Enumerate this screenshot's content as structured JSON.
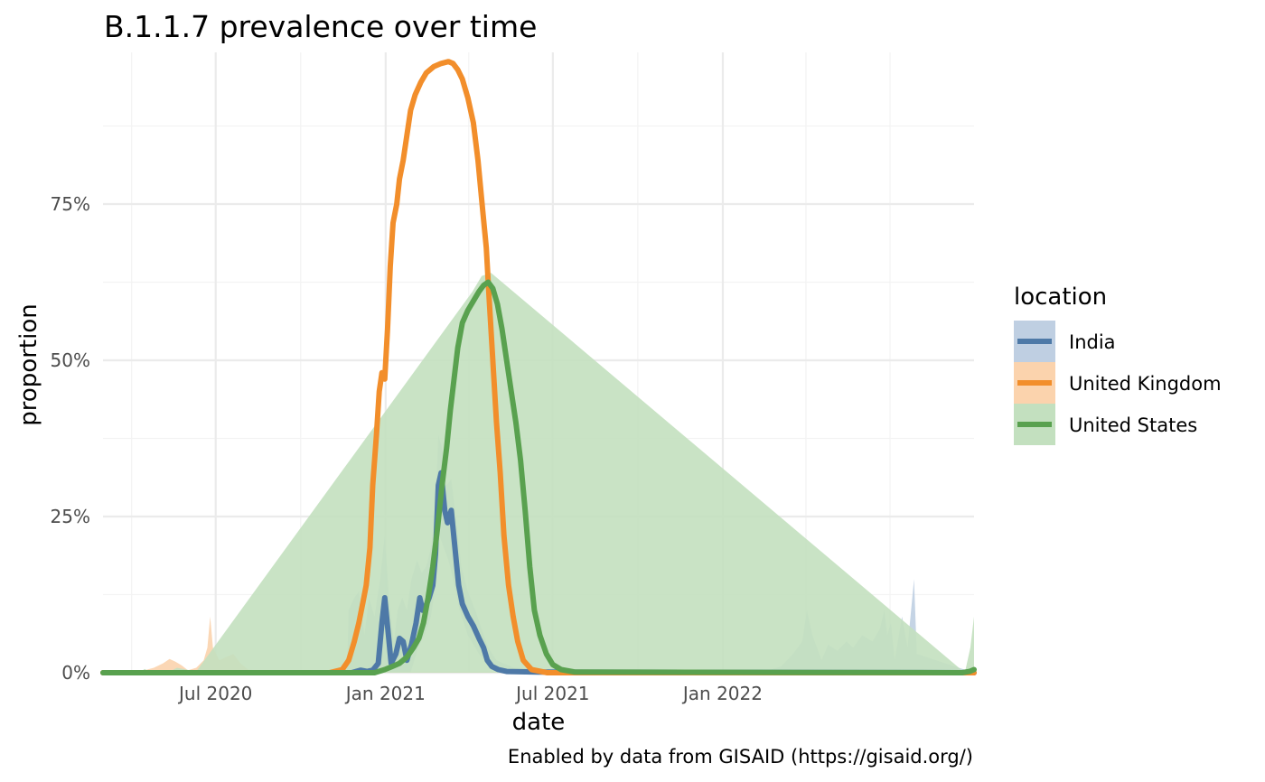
{
  "chart_data": {
    "type": "line",
    "title": "B.1.1.7 prevalence over time",
    "xlabel": "date",
    "ylabel": "proportion",
    "caption": "Enabled by data from GISAID (https://gisaid.org/)",
    "xlim": [
      "2020-03-01",
      "2022-09-30"
    ],
    "ylim": [
      0,
      1
    ],
    "x_ticks": [
      {
        "date": "2020-07-01",
        "label": "Jul 2020"
      },
      {
        "date": "2021-01-01",
        "label": "Jan 2021"
      },
      {
        "date": "2021-07-01",
        "label": "Jul 2021"
      },
      {
        "date": "2022-01-01",
        "label": "Jan 2022"
      }
    ],
    "x_minor_ticks": [
      "2020-04-01",
      "2020-10-01",
      "2021-04-01",
      "2021-10-01",
      "2022-04-01",
      "2022-07-01"
    ],
    "y_ticks": [
      {
        "value": 0,
        "label": "0%"
      },
      {
        "value": 0.25,
        "label": "25%"
      },
      {
        "value": 0.5,
        "label": "50%"
      },
      {
        "value": 0.75,
        "label": "75%"
      }
    ],
    "y_minor_ticks": [
      0.125,
      0.375,
      0.625,
      0.875
    ],
    "grid": true,
    "legend": {
      "title": "location",
      "position": "right"
    },
    "series": [
      {
        "name": "India",
        "color": "#4e79a7",
        "fill_color": "#bfcfe2",
        "line": [
          [
            "2020-03-01",
            0
          ],
          [
            "2020-11-25",
            0
          ],
          [
            "2020-12-05",
            0.004
          ],
          [
            "2020-12-12",
            0.002
          ],
          [
            "2020-12-18",
            0.004
          ],
          [
            "2020-12-24",
            0.015
          ],
          [
            "2020-12-28",
            0.08
          ],
          [
            "2020-12-31",
            0.12
          ],
          [
            "2021-01-04",
            0.06
          ],
          [
            "2021-01-07",
            0.015
          ],
          [
            "2021-01-12",
            0.03
          ],
          [
            "2021-01-16",
            0.055
          ],
          [
            "2021-01-20",
            0.05
          ],
          [
            "2021-01-24",
            0.02
          ],
          [
            "2021-01-29",
            0.045
          ],
          [
            "2021-02-03",
            0.08
          ],
          [
            "2021-02-07",
            0.12
          ],
          [
            "2021-02-10",
            0.1
          ],
          [
            "2021-02-13",
            0.105
          ],
          [
            "2021-02-17",
            0.12
          ],
          [
            "2021-02-21",
            0.14
          ],
          [
            "2021-02-24",
            0.19
          ],
          [
            "2021-02-27",
            0.3
          ],
          [
            "2021-03-02",
            0.32
          ],
          [
            "2021-03-06",
            0.26
          ],
          [
            "2021-03-09",
            0.24
          ],
          [
            "2021-03-13",
            0.26
          ],
          [
            "2021-03-17",
            0.2
          ],
          [
            "2021-03-21",
            0.14
          ],
          [
            "2021-03-25",
            0.11
          ],
          [
            "2021-03-31",
            0.09
          ],
          [
            "2021-04-06",
            0.075
          ],
          [
            "2021-04-12",
            0.055
          ],
          [
            "2021-04-17",
            0.04
          ],
          [
            "2021-04-21",
            0.02
          ],
          [
            "2021-04-26",
            0.01
          ],
          [
            "2021-05-03",
            0.005
          ],
          [
            "2021-05-12",
            0.002
          ],
          [
            "2021-06-15",
            0.001
          ],
          [
            "2022-09-30",
            0.0
          ]
        ],
        "band_upper": [
          [
            "2020-03-01",
            0
          ],
          [
            "2020-11-20",
            0
          ],
          [
            "2020-11-22",
            0.1
          ],
          [
            "2020-11-28",
            0.12
          ],
          [
            "2020-12-03",
            0.13
          ],
          [
            "2020-12-09",
            0.06
          ],
          [
            "2020-12-14",
            0.12
          ],
          [
            "2020-12-20",
            0.09
          ],
          [
            "2020-12-26",
            0.15
          ],
          [
            "2020-12-31",
            0.22
          ],
          [
            "2021-01-05",
            0.11
          ],
          [
            "2021-01-10",
            0.05
          ],
          [
            "2021-01-14",
            0.1
          ],
          [
            "2021-01-19",
            0.12
          ],
          [
            "2021-01-24",
            0.1
          ],
          [
            "2021-01-29",
            0.15
          ],
          [
            "2021-02-04",
            0.18
          ],
          [
            "2021-02-09",
            0.16
          ],
          [
            "2021-02-14",
            0.17
          ],
          [
            "2021-02-19",
            0.2
          ],
          [
            "2021-02-24",
            0.26
          ],
          [
            "2021-02-27",
            0.38
          ],
          [
            "2021-03-03",
            0.36
          ],
          [
            "2021-03-08",
            0.3
          ],
          [
            "2021-03-13",
            0.31
          ],
          [
            "2021-03-18",
            0.25
          ],
          [
            "2021-03-24",
            0.17
          ],
          [
            "2021-03-31",
            0.13
          ],
          [
            "2021-04-08",
            0.1
          ],
          [
            "2021-04-15",
            0.07
          ],
          [
            "2021-04-22",
            0.04
          ],
          [
            "2021-05-01",
            0.02
          ],
          [
            "2021-05-20",
            0.008
          ],
          [
            "2021-08-01",
            0.003
          ],
          [
            "2021-10-15",
            0.006
          ],
          [
            "2021-12-15",
            0.004
          ],
          [
            "2022-02-15",
            0.002
          ],
          [
            "2022-03-05",
            0.01
          ],
          [
            "2022-03-18",
            0.03
          ],
          [
            "2022-03-28",
            0.05
          ],
          [
            "2022-04-02",
            0.1
          ],
          [
            "2022-04-08",
            0.06
          ],
          [
            "2022-04-18",
            0.02
          ],
          [
            "2022-04-25",
            0.045
          ],
          [
            "2022-05-05",
            0.035
          ],
          [
            "2022-05-15",
            0.05
          ],
          [
            "2022-05-22",
            0.04
          ],
          [
            "2022-06-01",
            0.06
          ],
          [
            "2022-06-12",
            0.05
          ],
          [
            "2022-06-20",
            0.07
          ],
          [
            "2022-06-25",
            0.1
          ],
          [
            "2022-06-28",
            0.06
          ],
          [
            "2022-07-02",
            0.08
          ],
          [
            "2022-07-06",
            0.02
          ],
          [
            "2022-07-14",
            0.09
          ],
          [
            "2022-07-20",
            0.04
          ],
          [
            "2022-07-27",
            0.15
          ],
          [
            "2022-07-30",
            0.03
          ],
          [
            "2022-09-30",
            0.0
          ]
        ],
        "band_lower": [
          [
            "2020-03-01",
            0
          ],
          [
            "2021-01-28",
            0
          ],
          [
            "2021-02-05",
            0.04
          ],
          [
            "2021-02-12",
            0.06
          ],
          [
            "2021-02-19",
            0.09
          ],
          [
            "2021-02-24",
            0.14
          ],
          [
            "2021-02-28",
            0.22
          ],
          [
            "2021-03-05",
            0.2
          ],
          [
            "2021-03-10",
            0.18
          ],
          [
            "2021-03-15",
            0.15
          ],
          [
            "2021-03-22",
            0.1
          ],
          [
            "2021-03-31",
            0.06
          ],
          [
            "2021-04-12",
            0.03
          ],
          [
            "2021-04-25",
            0.005
          ],
          [
            "2021-05-05",
            0
          ],
          [
            "2022-09-30",
            0
          ]
        ]
      },
      {
        "name": "United Kingdom",
        "color": "#f28e2b",
        "fill_color": "#fbd3ad",
        "line": [
          [
            "2020-03-01",
            0
          ],
          [
            "2020-11-01",
            0
          ],
          [
            "2020-11-15",
            0.005
          ],
          [
            "2020-11-22",
            0.02
          ],
          [
            "2020-11-28",
            0.05
          ],
          [
            "2020-12-03",
            0.08
          ],
          [
            "2020-12-07",
            0.11
          ],
          [
            "2020-12-11",
            0.14
          ],
          [
            "2020-12-15",
            0.2
          ],
          [
            "2020-12-18",
            0.3
          ],
          [
            "2020-12-22",
            0.38
          ],
          [
            "2020-12-25",
            0.45
          ],
          [
            "2020-12-28",
            0.48
          ],
          [
            "2020-12-31",
            0.47
          ],
          [
            "2021-01-03",
            0.55
          ],
          [
            "2021-01-06",
            0.65
          ],
          [
            "2021-01-09",
            0.72
          ],
          [
            "2021-01-13",
            0.75
          ],
          [
            "2021-01-16",
            0.79
          ],
          [
            "2021-01-20",
            0.82
          ],
          [
            "2021-01-24",
            0.86
          ],
          [
            "2021-01-28",
            0.9
          ],
          [
            "2021-02-02",
            0.925
          ],
          [
            "2021-02-08",
            0.945
          ],
          [
            "2021-02-14",
            0.96
          ],
          [
            "2021-02-22",
            0.97
          ],
          [
            "2021-03-02",
            0.975
          ],
          [
            "2021-03-10",
            0.978
          ],
          [
            "2021-03-15",
            0.975
          ],
          [
            "2021-03-20",
            0.965
          ],
          [
            "2021-03-25",
            0.95
          ],
          [
            "2021-03-31",
            0.92
          ],
          [
            "2021-04-06",
            0.88
          ],
          [
            "2021-04-11",
            0.82
          ],
          [
            "2021-04-16",
            0.74
          ],
          [
            "2021-04-20",
            0.68
          ],
          [
            "2021-04-23",
            0.6
          ],
          [
            "2021-04-27",
            0.5
          ],
          [
            "2021-05-01",
            0.4
          ],
          [
            "2021-05-05",
            0.32
          ],
          [
            "2021-05-09",
            0.22
          ],
          [
            "2021-05-14",
            0.14
          ],
          [
            "2021-05-19",
            0.09
          ],
          [
            "2021-05-24",
            0.05
          ],
          [
            "2021-05-30",
            0.02
          ],
          [
            "2021-06-08",
            0.005
          ],
          [
            "2021-06-25",
            0
          ],
          [
            "2022-09-30",
            0
          ]
        ],
        "band_upper": [
          [
            "2020-03-01",
            0
          ],
          [
            "2020-04-05",
            0
          ],
          [
            "2020-04-15",
            0.004
          ],
          [
            "2020-04-25",
            0.008
          ],
          [
            "2020-05-05",
            0.015
          ],
          [
            "2020-05-12",
            0.022
          ],
          [
            "2020-05-18",
            0.018
          ],
          [
            "2020-05-25",
            0.012
          ],
          [
            "2020-06-01",
            0.004
          ],
          [
            "2020-06-10",
            0.008
          ],
          [
            "2020-06-18",
            0.02
          ],
          [
            "2020-06-22",
            0.04
          ],
          [
            "2020-06-25",
            0.09
          ],
          [
            "2020-06-28",
            0.04
          ],
          [
            "2020-07-05",
            0.02
          ],
          [
            "2020-07-12",
            0.025
          ],
          [
            "2020-07-20",
            0.03
          ],
          [
            "2020-07-28",
            0.015
          ],
          [
            "2020-08-05",
            0.005
          ],
          [
            "2020-08-20",
            0.003
          ],
          [
            "2020-10-01",
            0.001
          ],
          [
            "2020-11-01",
            0.002
          ],
          [
            "2022-09-30",
            0
          ]
        ],
        "band_lower": [
          [
            "2020-03-01",
            0
          ],
          [
            "2022-09-30",
            0
          ]
        ]
      },
      {
        "name": "United States",
        "color": "#59a14f",
        "fill_color": "#c3e0bf",
        "line": [
          [
            "2020-03-01",
            0
          ],
          [
            "2020-12-20",
            0
          ],
          [
            "2020-12-31",
            0.005
          ],
          [
            "2021-01-08",
            0.01
          ],
          [
            "2021-01-16",
            0.015
          ],
          [
            "2021-01-24",
            0.025
          ],
          [
            "2021-01-31",
            0.04
          ],
          [
            "2021-02-06",
            0.055
          ],
          [
            "2021-02-11",
            0.08
          ],
          [
            "2021-02-16",
            0.12
          ],
          [
            "2021-02-21",
            0.17
          ],
          [
            "2021-02-26",
            0.23
          ],
          [
            "2021-03-03",
            0.3
          ],
          [
            "2021-03-08",
            0.36
          ],
          [
            "2021-03-12",
            0.42
          ],
          [
            "2021-03-16",
            0.47
          ],
          [
            "2021-03-20",
            0.52
          ],
          [
            "2021-03-25",
            0.56
          ],
          [
            "2021-03-31",
            0.58
          ],
          [
            "2021-04-06",
            0.595
          ],
          [
            "2021-04-12",
            0.61
          ],
          [
            "2021-04-17",
            0.62
          ],
          [
            "2021-04-22",
            0.625
          ],
          [
            "2021-04-27",
            0.615
          ],
          [
            "2021-05-02",
            0.59
          ],
          [
            "2021-05-07",
            0.55
          ],
          [
            "2021-05-12",
            0.5
          ],
          [
            "2021-05-17",
            0.45
          ],
          [
            "2021-05-22",
            0.4
          ],
          [
            "2021-05-27",
            0.34
          ],
          [
            "2021-06-01",
            0.26
          ],
          [
            "2021-06-06",
            0.17
          ],
          [
            "2021-06-11",
            0.1
          ],
          [
            "2021-06-17",
            0.06
          ],
          [
            "2021-06-24",
            0.03
          ],
          [
            "2021-07-01",
            0.013
          ],
          [
            "2021-07-10",
            0.005
          ],
          [
            "2021-07-25",
            0.001
          ],
          [
            "2022-09-17",
            0
          ],
          [
            "2022-09-25",
            0.002
          ],
          [
            "2022-09-30",
            0.005
          ]
        ],
        "band_upper": [
          [
            "2020-03-01",
            0
          ],
          [
            "2020-04-10",
            0
          ],
          [
            "2020-04-15",
            0.006
          ],
          [
            "2020-04-20",
            0.002
          ],
          [
            "2020-05-15",
            0.004
          ],
          [
            "2020-05-20",
            0.008
          ],
          [
            "2020-06-10",
            0.002
          ],
          [
            "2021-04-05",
            0.61
          ],
          [
            "2021-04-15",
            0.635
          ],
          [
            "2021-04-25",
            0.64
          ],
          [
            "2022-09-20",
            0
          ],
          [
            "2022-09-26",
            0.04
          ],
          [
            "2022-09-30",
            0.09
          ]
        ],
        "band_lower": [
          [
            "2020-03-01",
            0
          ],
          [
            "2022-09-30",
            0
          ]
        ]
      }
    ]
  }
}
